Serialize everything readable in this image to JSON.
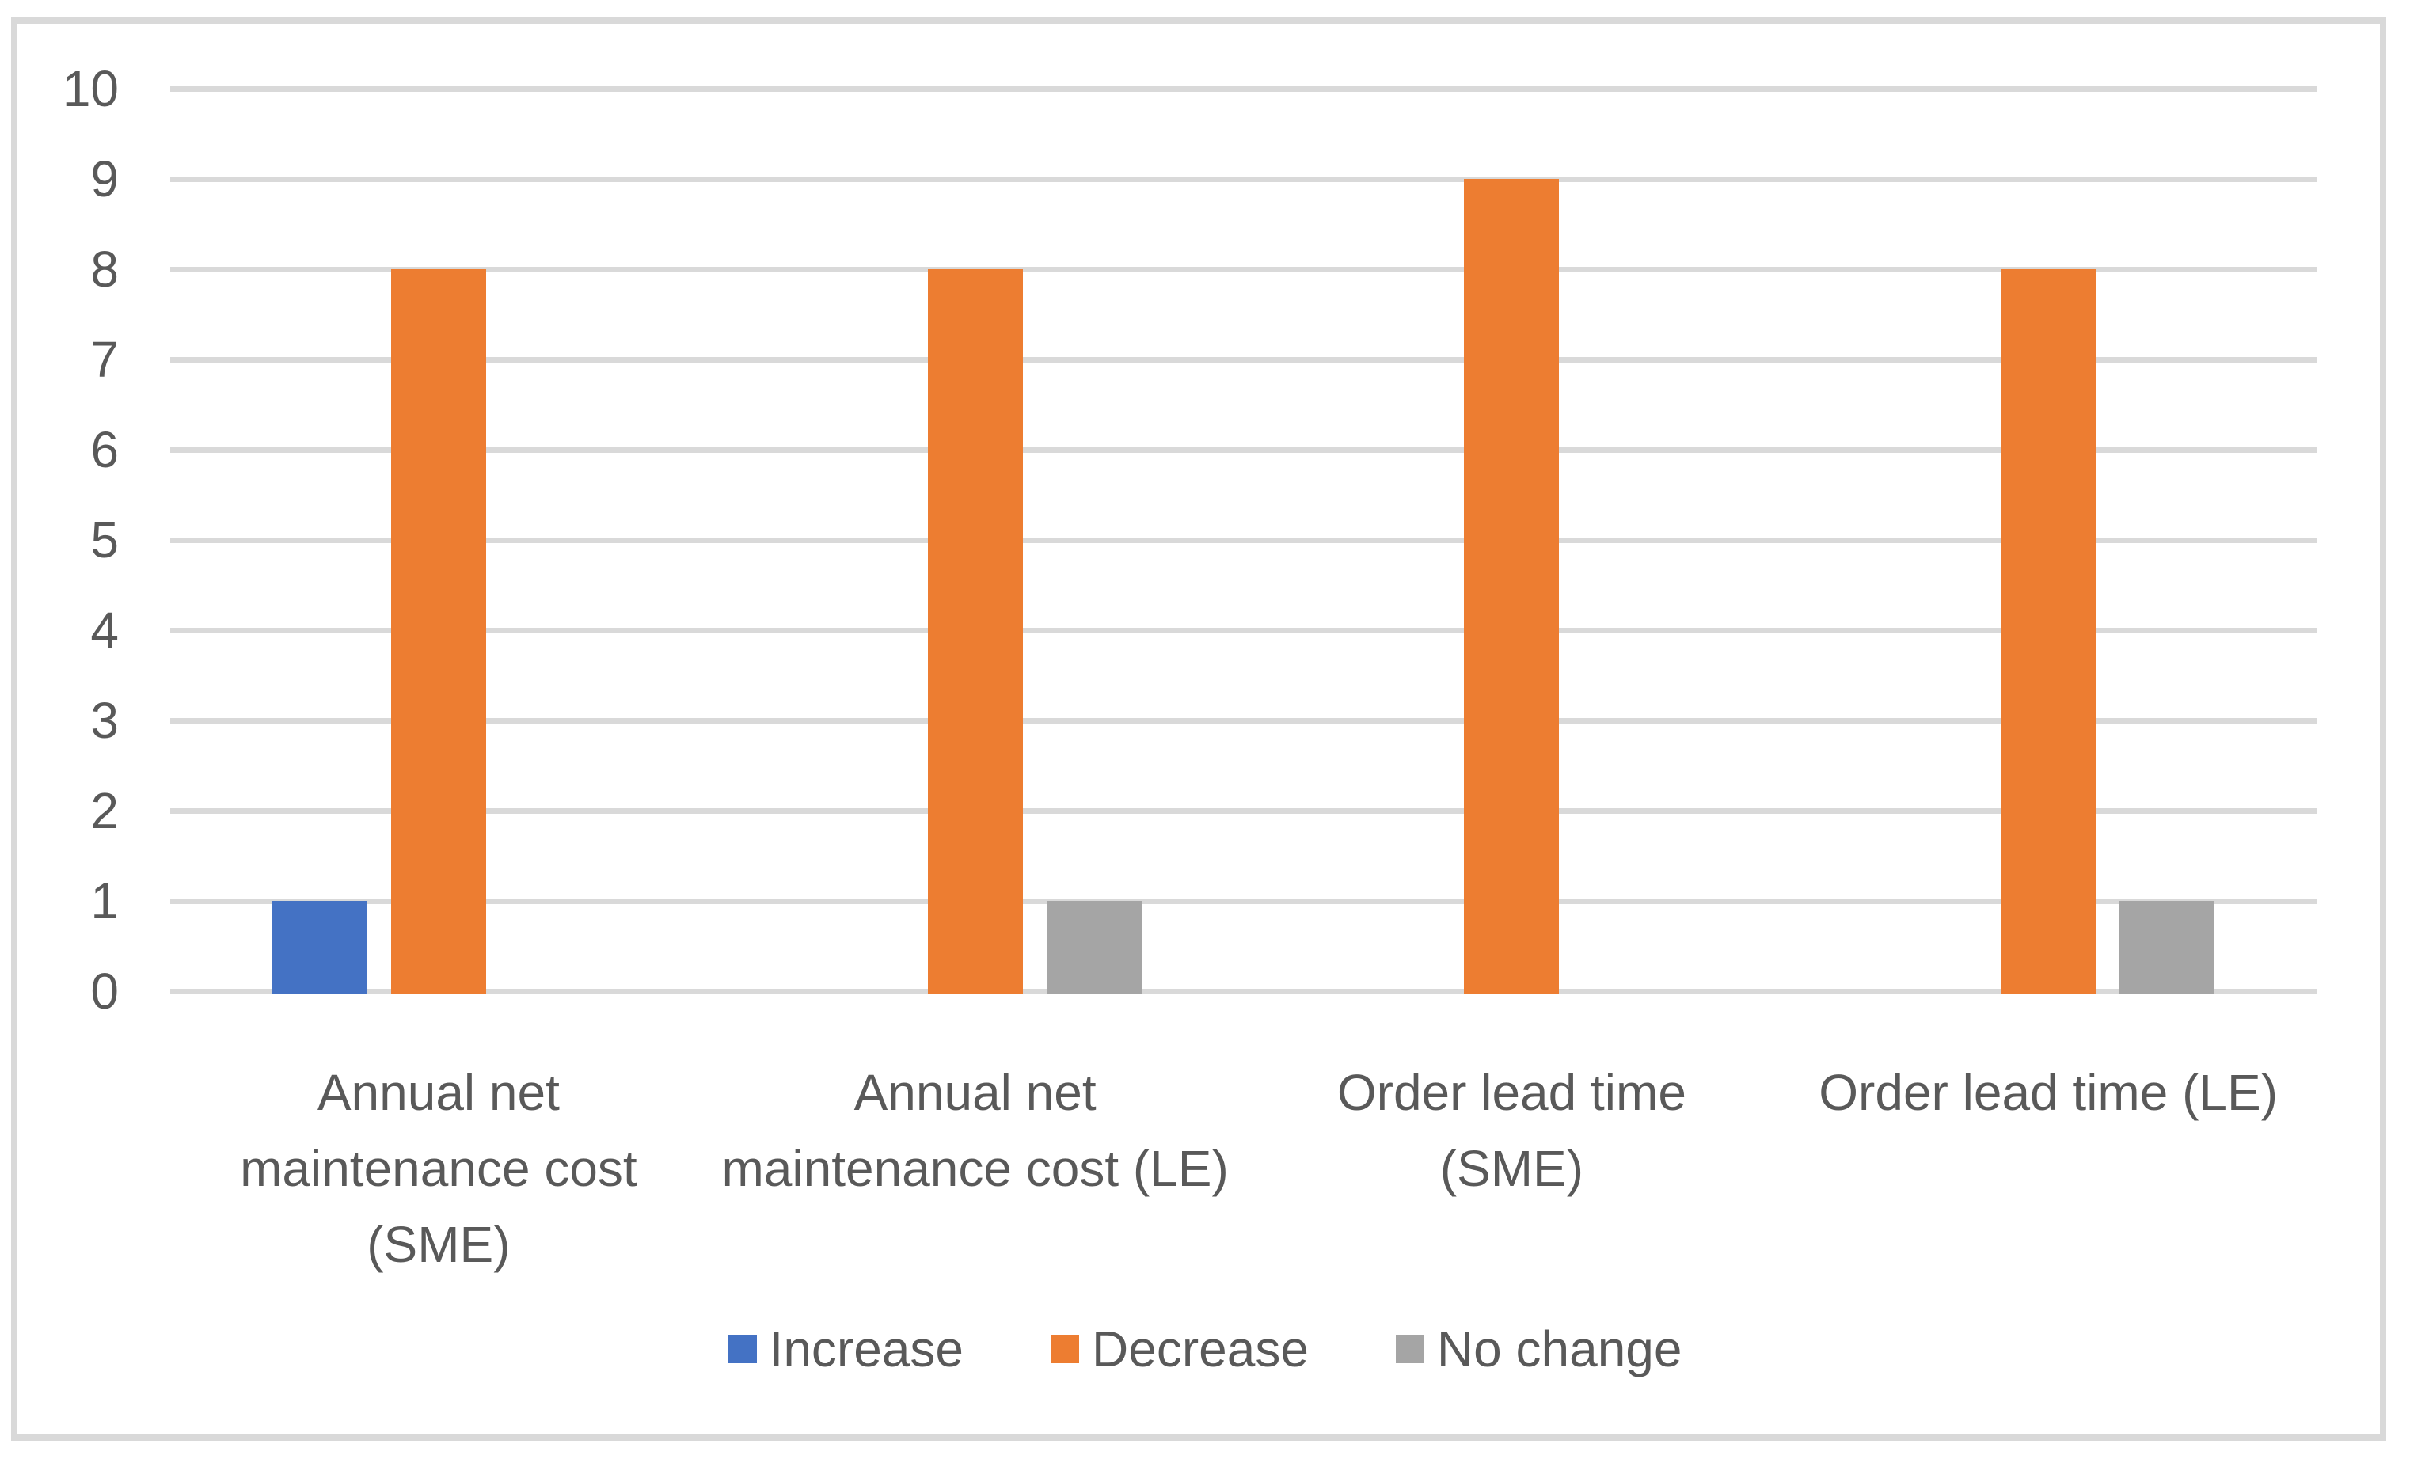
{
  "chart_data": {
    "type": "bar",
    "title": "",
    "xlabel": "",
    "ylabel": "",
    "categories": [
      "Annual net maintenance cost (SME)",
      "Annual net maintenance cost (LE)",
      "Order lead time (SME)",
      "Order lead time (LE)"
    ],
    "category_label_lines": [
      [
        "Annual net",
        "maintenance cost",
        "(SME)"
      ],
      [
        "Annual net",
        "maintenance cost (LE)"
      ],
      [
        "Order lead time",
        "(SME)"
      ],
      [
        "Order lead time (LE)"
      ]
    ],
    "series": [
      {
        "name": "Increase",
        "color": "#4472C4",
        "values": [
          1,
          0,
          0,
          0
        ]
      },
      {
        "name": "Decrease",
        "color": "#ED7D31",
        "values": [
          8,
          8,
          9,
          8
        ]
      },
      {
        "name": "No change",
        "color": "#A5A5A5",
        "values": [
          0,
          1,
          0,
          1
        ]
      }
    ],
    "ylim": [
      0,
      10
    ],
    "yticks": [
      0,
      1,
      2,
      3,
      4,
      5,
      6,
      7,
      8,
      9,
      10
    ],
    "grid": true,
    "legend_position": "bottom"
  },
  "colors": {
    "background": "#FFFFFF",
    "gridline": "#D9D9D9",
    "frame_border": "#D9D9D9",
    "text": "#595959"
  }
}
